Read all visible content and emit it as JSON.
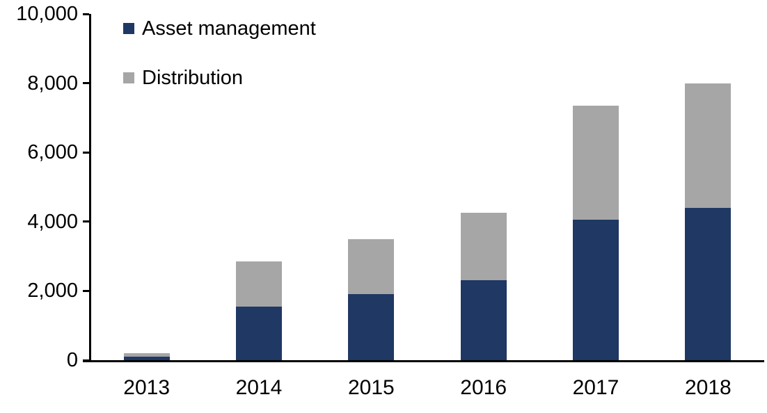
{
  "chart_data": {
    "type": "bar",
    "stacked": true,
    "title": "",
    "xlabel": "",
    "ylabel": "",
    "categories": [
      "2013",
      "2014",
      "2015",
      "2016",
      "2017",
      "2018"
    ],
    "series": [
      {
        "name": "Asset management",
        "color": "#1f3864",
        "values": [
          100,
          1550,
          1900,
          2300,
          4050,
          4400
        ]
      },
      {
        "name": "Distribution",
        "color": "#a6a6a6",
        "values": [
          100,
          1300,
          1600,
          1950,
          3300,
          3600
        ]
      }
    ],
    "stacked_totals": [
      200,
      2850,
      3500,
      4250,
      7350,
      8000
    ],
    "ylim": [
      0,
      10000
    ],
    "ytick_interval": 2000,
    "ytick_values": [
      0,
      2000,
      4000,
      6000,
      8000,
      10000
    ],
    "ytick_labels": [
      "0",
      "2,000",
      "4,000",
      "6,000",
      "8,000",
      "10,000"
    ],
    "grid": false,
    "legend_position": "top-left",
    "axis_color": "#000000",
    "background_color": "#ffffff"
  }
}
